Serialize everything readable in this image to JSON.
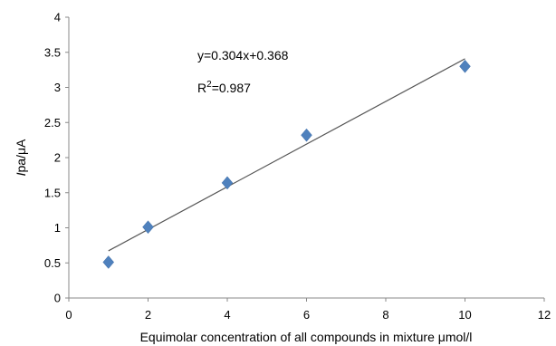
{
  "chart_data": {
    "type": "scatter",
    "title": "",
    "xlabel": "Equimolar concentration of all compounds in mixture μmol/l",
    "ylabel_italic": "I",
    "ylabel_rest": "pa/μA",
    "xlim": [
      0,
      12
    ],
    "ylim": [
      0,
      4
    ],
    "xticks": [
      "0",
      "2",
      "4",
      "6",
      "8",
      "10",
      "12"
    ],
    "yticks": [
      "0",
      "0.5",
      "1",
      "1.5",
      "2",
      "2.5",
      "3",
      "3.5",
      "4"
    ],
    "grid": false,
    "series": [
      {
        "x": [
          1,
          2,
          4,
          6,
          10
        ],
        "y": [
          0.51,
          1.01,
          1.64,
          2.32,
          3.3
        ],
        "color": "#4F81BD",
        "marker": "diamond"
      }
    ],
    "trendline": {
      "slope": 0.304,
      "intercept": 0.368,
      "x_range": [
        1,
        10
      ],
      "color": "#555555",
      "equation_label": "y=0.304x+0.368",
      "r2_prefix": "R",
      "r2_superscript": "2",
      "r2_value": "=0.987"
    }
  }
}
